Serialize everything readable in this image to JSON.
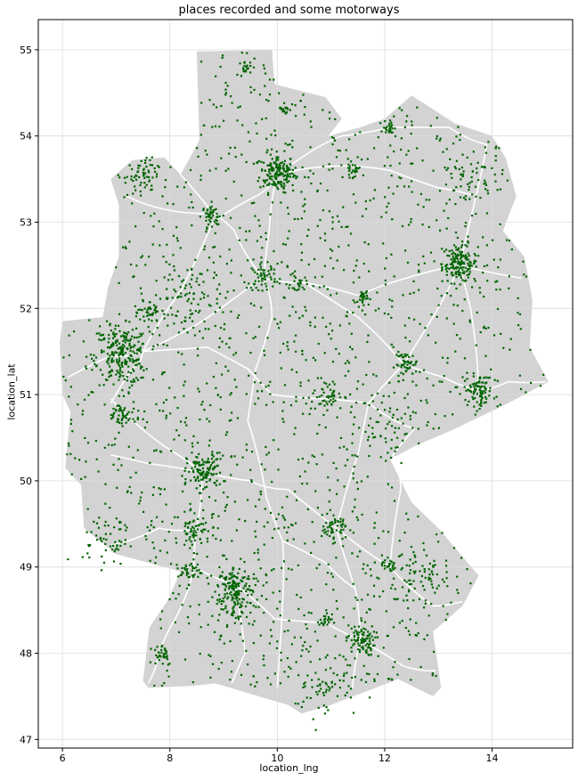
{
  "chart_data": {
    "type": "scatter",
    "title": "places recorded and some motorways",
    "xlabel": "location_lng",
    "ylabel": "location_lat",
    "xlim": [
      5.55,
      15.5
    ],
    "ylim": [
      46.9,
      55.35
    ],
    "xticks": [
      6,
      8,
      10,
      12,
      14
    ],
    "yticks": [
      47,
      48,
      49,
      50,
      51,
      52,
      53,
      54,
      55
    ],
    "grid": true,
    "colors": {
      "region_fill": "#d3d3d3",
      "points": "#006400",
      "motorways": "#ffffff",
      "grid": "#dcdcdc",
      "axes": "#000000"
    },
    "region_outline": [
      [
        6.0,
        51.85
      ],
      [
        6.75,
        51.9
      ],
      [
        6.85,
        52.25
      ],
      [
        7.05,
        52.6
      ],
      [
        7.05,
        53.2
      ],
      [
        6.9,
        53.5
      ],
      [
        7.3,
        53.72
      ],
      [
        7.9,
        53.75
      ],
      [
        8.2,
        53.55
      ],
      [
        8.55,
        53.95
      ],
      [
        8.5,
        54.98
      ],
      [
        9.9,
        55.0
      ],
      [
        9.95,
        54.6
      ],
      [
        10.9,
        54.45
      ],
      [
        11.2,
        54.2
      ],
      [
        10.95,
        54.0
      ],
      [
        11.55,
        54.1
      ],
      [
        12.0,
        54.2
      ],
      [
        12.5,
        54.47
      ],
      [
        13.3,
        54.15
      ],
      [
        14.0,
        54.0
      ],
      [
        14.25,
        53.75
      ],
      [
        14.45,
        53.3
      ],
      [
        14.2,
        52.9
      ],
      [
        14.6,
        52.6
      ],
      [
        14.75,
        52.1
      ],
      [
        14.7,
        51.55
      ],
      [
        15.05,
        51.15
      ],
      [
        14.3,
        50.9
      ],
      [
        13.3,
        50.6
      ],
      [
        12.55,
        50.4
      ],
      [
        12.1,
        50.25
      ],
      [
        12.5,
        49.75
      ],
      [
        13.0,
        49.45
      ],
      [
        13.75,
        48.9
      ],
      [
        13.45,
        48.55
      ],
      [
        12.9,
        48.25
      ],
      [
        13.05,
        47.6
      ],
      [
        12.9,
        47.5
      ],
      [
        12.25,
        47.7
      ],
      [
        11.0,
        47.4
      ],
      [
        10.45,
        47.3
      ],
      [
        10.2,
        47.4
      ],
      [
        9.55,
        47.52
      ],
      [
        8.85,
        47.65
      ],
      [
        8.4,
        47.62
      ],
      [
        7.6,
        47.6
      ],
      [
        7.5,
        47.68
      ],
      [
        7.62,
        48.3
      ],
      [
        7.95,
        48.6
      ],
      [
        8.2,
        48.95
      ],
      [
        7.0,
        49.15
      ],
      [
        6.4,
        49.45
      ],
      [
        6.35,
        49.95
      ],
      [
        6.05,
        50.15
      ],
      [
        6.15,
        50.8
      ],
      [
        6.0,
        51.0
      ],
      [
        5.95,
        51.6
      ],
      [
        6.0,
        51.85
      ]
    ],
    "motorways": [
      [
        [
          6.1,
          51.2
        ],
        [
          6.9,
          51.45
        ],
        [
          7.5,
          51.5
        ],
        [
          8.6,
          51.85
        ],
        [
          9.7,
          52.35
        ],
        [
          10.5,
          52.3
        ],
        [
          11.5,
          52.15
        ],
        [
          12.4,
          52.35
        ],
        [
          13.4,
          52.5
        ]
      ],
      [
        [
          6.9,
          50.9
        ],
        [
          7.3,
          51.3
        ],
        [
          7.5,
          51.5
        ],
        [
          8.2,
          52.2
        ],
        [
          8.8,
          53.0
        ],
        [
          9.6,
          53.3
        ],
        [
          10.0,
          53.55
        ],
        [
          10.7,
          53.85
        ],
        [
          11.2,
          54.0
        ]
      ],
      [
        [
          10.0,
          53.55
        ],
        [
          9.85,
          52.9
        ],
        [
          9.75,
          52.35
        ],
        [
          9.9,
          51.9
        ],
        [
          9.6,
          51.3
        ],
        [
          9.45,
          50.7
        ],
        [
          9.8,
          49.8
        ],
        [
          10.1,
          49.3
        ],
        [
          10.1,
          48.6
        ],
        [
          10.0,
          47.6
        ]
      ],
      [
        [
          13.4,
          52.5
        ],
        [
          12.95,
          51.95
        ],
        [
          12.35,
          51.35
        ],
        [
          11.7,
          50.9
        ],
        [
          11.5,
          50.3
        ],
        [
          11.1,
          49.45
        ],
        [
          11.45,
          48.75
        ],
        [
          11.55,
          48.15
        ],
        [
          11.4,
          47.6
        ]
      ],
      [
        [
          13.4,
          52.5
        ],
        [
          13.6,
          52.0
        ],
        [
          13.75,
          51.05
        ],
        [
          14.3,
          51.15
        ],
        [
          15.0,
          51.15
        ]
      ],
      [
        [
          13.4,
          52.5
        ],
        [
          14.55,
          52.35
        ]
      ],
      [
        [
          13.4,
          52.5
        ],
        [
          13.7,
          53.3
        ],
        [
          13.9,
          53.9
        ],
        [
          13.2,
          54.1
        ],
        [
          12.1,
          54.1
        ],
        [
          11.2,
          54.0
        ]
      ],
      [
        [
          6.9,
          50.95
        ],
        [
          7.9,
          50.4
        ],
        [
          8.6,
          50.1
        ],
        [
          8.5,
          49.45
        ],
        [
          8.45,
          49.0
        ],
        [
          8.1,
          48.4
        ],
        [
          7.8,
          48.0
        ],
        [
          7.6,
          47.65
        ]
      ],
      [
        [
          8.6,
          50.1
        ],
        [
          9.5,
          50.0
        ],
        [
          10.2,
          49.9
        ],
        [
          11.1,
          49.45
        ],
        [
          12.1,
          49.0
        ],
        [
          12.9,
          48.55
        ],
        [
          13.45,
          48.6
        ]
      ],
      [
        [
          6.9,
          50.3
        ],
        [
          7.6,
          50.2
        ],
        [
          8.6,
          50.1
        ]
      ],
      [
        [
          6.9,
          49.25
        ],
        [
          7.8,
          49.45
        ],
        [
          8.5,
          49.45
        ]
      ],
      [
        [
          8.45,
          49.0
        ],
        [
          9.2,
          48.8
        ],
        [
          9.95,
          48.4
        ],
        [
          10.9,
          48.35
        ],
        [
          11.55,
          48.15
        ],
        [
          12.35,
          47.85
        ],
        [
          12.95,
          47.8
        ]
      ],
      [
        [
          9.2,
          48.8
        ],
        [
          9.4,
          48.0
        ],
        [
          9.15,
          47.65
        ]
      ],
      [
        [
          11.7,
          50.9
        ],
        [
          10.95,
          50.95
        ],
        [
          9.9,
          51.0
        ],
        [
          9.45,
          51.3
        ],
        [
          8.7,
          51.55
        ],
        [
          7.5,
          51.5
        ]
      ],
      [
        [
          12.35,
          51.35
        ],
        [
          13.1,
          51.2
        ],
        [
          13.75,
          51.05
        ]
      ],
      [
        [
          12.35,
          51.35
        ],
        [
          11.5,
          51.9
        ],
        [
          10.5,
          52.3
        ]
      ],
      [
        [
          9.75,
          52.35
        ],
        [
          9.2,
          52.9
        ],
        [
          8.8,
          53.1
        ],
        [
          8.2,
          53.55
        ]
      ],
      [
        [
          10.0,
          53.55
        ],
        [
          11.1,
          53.65
        ],
        [
          12.1,
          53.6
        ],
        [
          13.0,
          53.4
        ],
        [
          13.7,
          53.3
        ]
      ],
      [
        [
          12.1,
          49.0
        ],
        [
          12.3,
          49.9
        ],
        [
          12.15,
          50.3
        ],
        [
          12.55,
          50.6
        ],
        [
          11.7,
          50.9
        ]
      ],
      [
        [
          10.1,
          49.3
        ],
        [
          10.9,
          49.05
        ],
        [
          11.45,
          48.75
        ]
      ],
      [
        [
          7.2,
          53.3
        ],
        [
          7.9,
          53.15
        ],
        [
          8.8,
          53.1
        ]
      ]
    ],
    "clusters": [
      {
        "lng": 10.0,
        "lat": 53.57,
        "spread": 0.22,
        "count": 170
      },
      {
        "lng": 13.4,
        "lat": 52.52,
        "spread": 0.22,
        "count": 160
      },
      {
        "lng": 7.1,
        "lat": 51.45,
        "spread": 0.33,
        "count": 230
      },
      {
        "lng": 9.2,
        "lat": 48.78,
        "spread": 0.22,
        "count": 130
      },
      {
        "lng": 11.55,
        "lat": 48.15,
        "spread": 0.18,
        "count": 90
      },
      {
        "lng": 8.65,
        "lat": 50.1,
        "spread": 0.22,
        "count": 110
      },
      {
        "lng": 13.75,
        "lat": 51.05,
        "spread": 0.18,
        "count": 80
      },
      {
        "lng": 12.4,
        "lat": 51.35,
        "spread": 0.14,
        "count": 50
      },
      {
        "lng": 9.75,
        "lat": 52.37,
        "spread": 0.15,
        "count": 50
      },
      {
        "lng": 8.8,
        "lat": 53.08,
        "spread": 0.13,
        "count": 40
      },
      {
        "lng": 11.05,
        "lat": 49.45,
        "spread": 0.15,
        "count": 50
      },
      {
        "lng": 8.45,
        "lat": 49.4,
        "spread": 0.2,
        "count": 60
      },
      {
        "lng": 7.65,
        "lat": 51.95,
        "spread": 0.14,
        "count": 35
      },
      {
        "lng": 7.1,
        "lat": 50.75,
        "spread": 0.18,
        "count": 50
      },
      {
        "lng": 10.4,
        "lat": 52.28,
        "spread": 0.1,
        "count": 25
      },
      {
        "lng": 11.4,
        "lat": 53.6,
        "spread": 0.08,
        "count": 25
      },
      {
        "lng": 12.1,
        "lat": 54.1,
        "spread": 0.08,
        "count": 25
      },
      {
        "lng": 9.4,
        "lat": 54.8,
        "spread": 0.07,
        "count": 18
      },
      {
        "lng": 10.15,
        "lat": 54.32,
        "spread": 0.08,
        "count": 20
      },
      {
        "lng": 11.6,
        "lat": 52.13,
        "spread": 0.08,
        "count": 25
      },
      {
        "lng": 7.45,
        "lat": 53.52,
        "spread": 0.22,
        "count": 50
      },
      {
        "lng": 10.9,
        "lat": 48.37,
        "spread": 0.08,
        "count": 20
      },
      {
        "lng": 12.1,
        "lat": 49.0,
        "spread": 0.07,
        "count": 20
      },
      {
        "lng": 10.95,
        "lat": 50.98,
        "spread": 0.2,
        "count": 45
      },
      {
        "lng": 6.8,
        "lat": 49.3,
        "spread": 0.28,
        "count": 45
      },
      {
        "lng": 8.4,
        "lat": 48.95,
        "spread": 0.13,
        "count": 35
      },
      {
        "lng": 7.85,
        "lat": 48.0,
        "spread": 0.14,
        "count": 30
      },
      {
        "lng": 9.3,
        "lat": 48.5,
        "spread": 0.28,
        "count": 60
      },
      {
        "lng": 12.7,
        "lat": 48.9,
        "spread": 0.35,
        "count": 60
      },
      {
        "lng": 10.9,
        "lat": 47.65,
        "spread": 0.4,
        "count": 55
      },
      {
        "lng": 13.5,
        "lat": 53.55,
        "spread": 0.35,
        "count": 40
      },
      {
        "lng": 12.0,
        "lat": 50.65,
        "spread": 0.4,
        "count": 60
      },
      {
        "lng": 8.3,
        "lat": 52.1,
        "spread": 0.45,
        "count": 70
      }
    ],
    "scattered_count": 1550
  }
}
